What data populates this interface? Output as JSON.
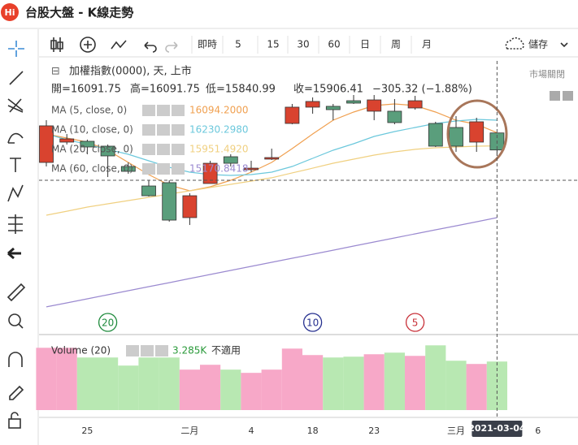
{
  "app": {
    "logo": "Hi",
    "title": "台股大盤 - K線走勢"
  },
  "toolbar": {
    "buttons": [
      "即時",
      "5",
      "15",
      "30",
      "60",
      "日",
      "周",
      "月"
    ],
    "save": "儲存"
  },
  "chart_data": {
    "type": "candlestick",
    "title": "加權指數(0000), 天, 上市",
    "ohlc_text": [
      "開=16091.75",
      "高=16091.75",
      "低=15840.99",
      "收=15906.41",
      "−305.32 (−1.88%)"
    ],
    "market_status": "市場關閉",
    "categories": [
      null,
      null,
      "25",
      null,
      null,
      null,
      null,
      "二月",
      null,
      null,
      "4",
      null,
      null,
      "18",
      null,
      null,
      "23",
      null,
      null,
      null,
      "三月",
      null,
      null,
      null,
      "6"
    ],
    "open": [
      15771,
      15992,
      16001,
      15948,
      15727,
      15515,
      15551,
      15171,
      15542,
      15833,
      15692,
      15807,
      16195,
      16372,
      16381,
      16442,
      16328,
      16328,
      16363,
      16195,
      16151,
      15992,
      16091.75,
      null,
      null
    ],
    "high": [
      16230,
      16080,
      16019,
      15966,
      15771,
      15577,
      15577,
      15436,
      15789,
      15860,
      15789,
      15921,
      16407,
      16478,
      16407,
      16504,
      16504,
      16460,
      16495,
      16213,
      16275,
      16257,
      16091.75,
      null,
      null
    ],
    "low": [
      15727,
      15966,
      15860,
      15612,
      15648,
      15400,
      15127,
      15091,
      15542,
      15727,
      15665,
      15798,
      16186,
      16301,
      16230,
      16407,
      16230,
      16186,
      16345,
      15939,
      15886,
      15886,
      15840.99,
      null,
      null
    ],
    "close": [
      16169,
      16027,
      15939,
      15842,
      15674,
      15409,
      15144,
      15409,
      15762,
      15762,
      15709,
      15824,
      16372,
      16434,
      16345,
      16416,
      16451,
      16204,
      16442,
      15948,
      15948,
      16213,
      15906.41,
      null,
      null
    ],
    "ylim": [
      13917,
      16875
    ],
    "up_color": "#d9432f",
    "down_color": "#5a9e7c",
    "moving_averages": [
      {
        "name": "MA (5, close, 0)",
        "color": "#f0a050",
        "value_label": "16094.2000",
        "values": [
          16080,
          16036,
          15992,
          15904,
          15771,
          15639,
          15524,
          15462,
          15506,
          15577,
          15665,
          15771,
          15921,
          16080,
          16230,
          16319,
          16389,
          16407,
          16389,
          16319,
          16230,
          16186,
          16094.2,
          null,
          null
        ]
      },
      {
        "name": "MA (10, close, 0)",
        "color": "#6cc8dc",
        "value_label": "16230.2980",
        "values": [
          16080,
          16019,
          15966,
          15913,
          15860,
          15789,
          15718,
          15665,
          15639,
          15630,
          15639,
          15665,
          15727,
          15815,
          15904,
          15974,
          16054,
          16107,
          16151,
          16195,
          16222,
          16239,
          16230.298,
          null,
          null
        ]
      },
      {
        "name": "MA (20, close, 0)",
        "color": "#f0d080",
        "value_label": "15951.4920",
        "values": [
          15197,
          15241,
          15286,
          15321,
          15356,
          15392,
          15427,
          15462,
          15498,
          15533,
          15568,
          15604,
          15657,
          15709,
          15762,
          15807,
          15851,
          15886,
          15913,
          15930,
          15939,
          15948,
          15951.492,
          null,
          null
        ]
      },
      {
        "name": "MA (60, close, 0)",
        "color": "#9b8ad0",
        "value_label": "15170.8418",
        "values": [
          14200,
          14244,
          14288,
          14332,
          14376,
          14420,
          14464,
          14509,
          14553,
          14597,
          14641,
          14685,
          14729,
          14773,
          14817,
          14862,
          14906,
          14950,
          14994,
          15038,
          15082,
          15126,
          15170.8418,
          null,
          null
        ]
      }
    ],
    "markers": [
      {
        "value": 20,
        "color": "#1e8a3c"
      },
      {
        "value": 10,
        "color": "#26308f"
      },
      {
        "value": 5,
        "color": "#c8323a"
      }
    ],
    "volume": {
      "name": "Volume (20)",
      "value_label": "3.285K",
      "status": "不適用",
      "ylim": [
        0,
        5000
      ],
      "up_color": "#f7a8c8",
      "down_color": "#b8e8b2",
      "values": [
        4216,
        4216,
        3559,
        3559,
        3011,
        3559,
        3559,
        2738,
        3066,
        2738,
        2519,
        2738,
        4161,
        3723,
        3559,
        3614,
        3778,
        3887,
        3668,
        4380,
        3340,
        3121,
        3285,
        null,
        null
      ]
    },
    "crosshair_label": "2021-03-04"
  }
}
